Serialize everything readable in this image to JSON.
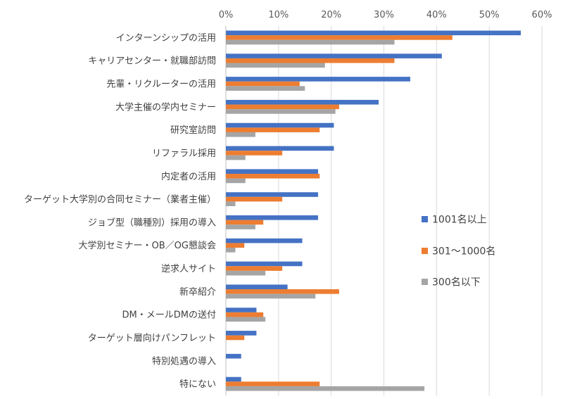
{
  "chart_data": {
    "type": "bar",
    "orientation": "horizontal",
    "categories": [
      "インターンシップの活用",
      "キャリアセンター・就職部訪問",
      "先輩・リクルーターの活用",
      "大学主催の学内セミナー",
      "研究室訪問",
      "リファラル採用",
      "内定者の活用",
      "ターゲット大学別の合同セミナー（業者主催）",
      "ジョブ型（職種別）採用の導入",
      "大学別セミナー・OB／OG懇談会",
      "逆求人サイト",
      "新卒紹介",
      "DM・メールDMの送付",
      "ターゲット層向けパンフレット",
      "特別処遇の導入",
      "特にない"
    ],
    "series": [
      {
        "name": "1001名以上",
        "color": "#4472C4",
        "values": [
          56,
          41,
          35,
          29,
          20.5,
          20.5,
          17.5,
          17.5,
          17.5,
          14.5,
          14.5,
          11.7,
          5.8,
          5.8,
          2.9,
          2.9
        ]
      },
      {
        "name": "301〜1000名",
        "color": "#ED7D31",
        "values": [
          43,
          32,
          14,
          21.5,
          17.8,
          10.7,
          17.8,
          10.7,
          7.1,
          3.5,
          10.7,
          21.5,
          7.1,
          3.5,
          0,
          17.8
        ]
      },
      {
        "name": "300名以下",
        "color": "#A5A5A5",
        "values": [
          32,
          18.8,
          15,
          20.8,
          5.6,
          3.7,
          3.7,
          1.8,
          5.6,
          1.8,
          7.5,
          17,
          7.5,
          0,
          0,
          37.7
        ]
      }
    ],
    "xlim": [
      0,
      60
    ],
    "xticks": [
      "0%",
      "10%",
      "20%",
      "30%",
      "40%",
      "50%",
      "60%"
    ],
    "x_axis_position": "top",
    "grid": true,
    "legend_position": "right",
    "title": "",
    "xlabel": "",
    "ylabel": ""
  }
}
